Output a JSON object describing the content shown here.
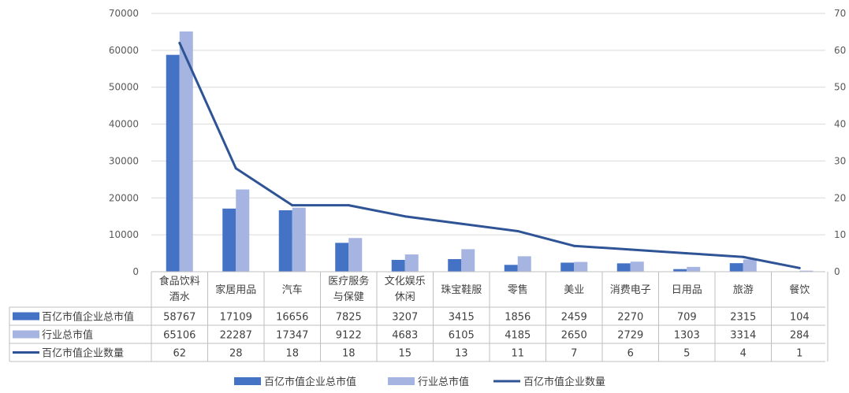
{
  "chart_data": {
    "type": "bar",
    "categories": [
      [
        "食品饮料",
        "酒水"
      ],
      [
        "家居用品"
      ],
      [
        "汽车"
      ],
      [
        "医疗服务",
        "与保健"
      ],
      [
        "文化娱乐",
        "休闲"
      ],
      [
        "珠宝鞋服"
      ],
      [
        "零售"
      ],
      [
        "美业"
      ],
      [
        "消费电子"
      ],
      [
        "日用品"
      ],
      [
        "旅游"
      ],
      [
        "餐饮"
      ]
    ],
    "series": [
      {
        "name": "百亿市值企业总市值",
        "type": "bar",
        "axis": "left",
        "color": "#4472C4",
        "values": [
          58767,
          17109,
          16656,
          7825,
          3207,
          3415,
          1856,
          2459,
          2270,
          709,
          2315,
          104
        ]
      },
      {
        "name": "行业总市值",
        "type": "bar",
        "axis": "left",
        "color": "#A5B4E0",
        "values": [
          65106,
          22287,
          17347,
          9122,
          4683,
          6105,
          4185,
          2650,
          2729,
          1303,
          3314,
          284
        ]
      },
      {
        "name": "百亿市值企业数量",
        "type": "line",
        "axis": "right",
        "color": "#2F5496",
        "values": [
          62,
          28,
          18,
          18,
          15,
          13,
          11,
          7,
          6,
          5,
          4,
          1
        ]
      }
    ],
    "y_left": {
      "min": 0,
      "max": 70000,
      "step": 10000,
      "ticks": [
        "0",
        "10000",
        "20000",
        "30000",
        "40000",
        "50000",
        "60000",
        "70000"
      ]
    },
    "y_right": {
      "min": 0,
      "max": 70,
      "step": 10,
      "ticks": [
        "0",
        "10",
        "20",
        "30",
        "40",
        "50",
        "60",
        "70"
      ]
    },
    "grid": true,
    "legend_position": "bottom",
    "data_table": true
  }
}
